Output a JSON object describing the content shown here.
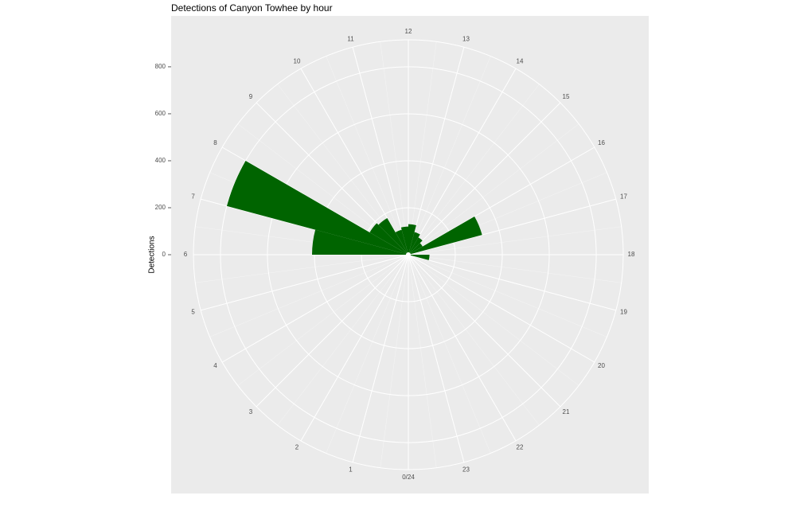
{
  "chart_data": {
    "type": "polar_bar",
    "title": "Detections of Canyon Towhee by hour",
    "y_label": "Detections",
    "categories": [
      "0/24",
      "1",
      "2",
      "3",
      "4",
      "5",
      "6",
      "7",
      "8",
      "9",
      "10",
      "11",
      "12",
      "13",
      "14",
      "15",
      "16",
      "17",
      "18",
      "19",
      "20",
      "21",
      "22",
      "23"
    ],
    "values": [
      0,
      0,
      0,
      0,
      0,
      0,
      410,
      800,
      190,
      180,
      110,
      120,
      130,
      100,
      85,
      70,
      325,
      0,
      90,
      0,
      0,
      0,
      0,
      0
    ],
    "color": "#006400",
    "ylim": [
      0,
      915
    ],
    "yticks": [
      0,
      200,
      400,
      600,
      800
    ],
    "grid": true
  }
}
